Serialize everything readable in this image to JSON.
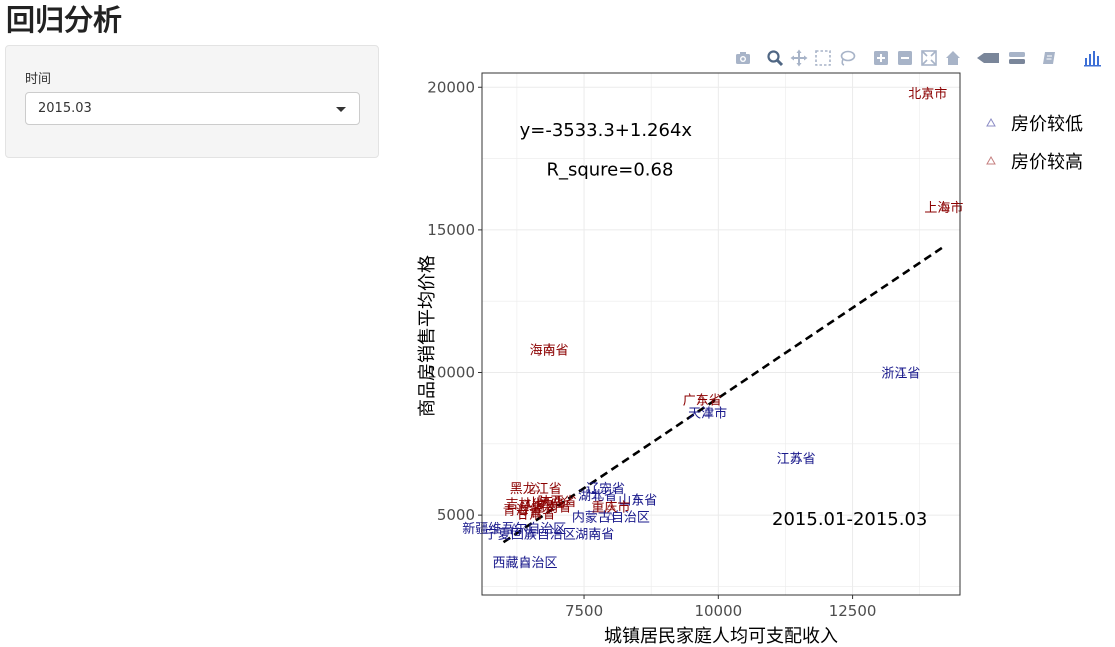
{
  "page": {
    "title": "回归分析"
  },
  "sidebar": {
    "time_label": "时间",
    "time_select_value": "2015.03"
  },
  "modebar": {
    "buttons": [
      {
        "name": "camera-icon"
      },
      {
        "name": "zoom-icon"
      },
      {
        "name": "pan-icon"
      },
      {
        "name": "box-select-icon"
      },
      {
        "name": "lasso-select-icon"
      },
      {
        "name": "zoom-in-icon"
      },
      {
        "name": "zoom-out-icon"
      },
      {
        "name": "autoscale-icon"
      },
      {
        "name": "reset-axes-icon"
      },
      {
        "name": "hover-closest-icon"
      },
      {
        "name": "hover-compare-icon"
      },
      {
        "name": "edit-chart-icon"
      },
      {
        "name": "plotly-logo-icon"
      }
    ]
  },
  "chart_data": {
    "type": "scatter",
    "xlabel": "城镇居民家庭人均可支配收入",
    "ylabel": "商品房销售平均价格",
    "xlim": [
      5600,
      14500
    ],
    "ylim": [
      2200,
      20500
    ],
    "xticks": [
      7500,
      10000,
      12500
    ],
    "yticks": [
      5000,
      10000,
      15000,
      20000
    ],
    "grid": true,
    "equation": "y=-3533.3+1.264x",
    "r_square": "R_squre=0.68",
    "period": "2015.01-2015.03",
    "regression": {
      "intercept": -3533.3,
      "slope": 1.264,
      "x_start": 6000,
      "x_end": 14200
    },
    "legend": {
      "placement": "top-right",
      "entries": [
        {
          "label": "房价较低",
          "color": "#1a1a8c"
        },
        {
          "label": "房价较高",
          "color": "#8b0000"
        }
      ]
    },
    "series": [
      {
        "name": "房价较低",
        "color": "#1a1a8c",
        "points": [
          {
            "label": "浙江省",
            "x": 13400,
            "y": 10000
          },
          {
            "label": "江苏省",
            "x": 11450,
            "y": 7000
          },
          {
            "label": "天津市",
            "x": 9800,
            "y": 8600
          },
          {
            "label": "山东省",
            "x": 8500,
            "y": 5550
          },
          {
            "label": "辽宁省",
            "x": 7900,
            "y": 5950
          },
          {
            "label": "湖北省",
            "x": 7750,
            "y": 5700
          },
          {
            "label": "内蒙古自治区",
            "x": 8000,
            "y": 4950
          },
          {
            "label": "湖南省",
            "x": 7700,
            "y": 4350
          },
          {
            "label": "新疆维吾尔自治区",
            "x": 6200,
            "y": 4550
          },
          {
            "label": "宁夏回族自治区",
            "x": 6500,
            "y": 4350
          },
          {
            "label": "西藏自治区",
            "x": 6400,
            "y": 3350
          }
        ]
      },
      {
        "name": "房价较高",
        "color": "#8b0000",
        "points": [
          {
            "label": "北京市",
            "x": 13900,
            "y": 19800
          },
          {
            "label": "上海市",
            "x": 14200,
            "y": 15800
          },
          {
            "label": "海南省",
            "x": 6850,
            "y": 10800
          },
          {
            "label": "广东省",
            "x": 9700,
            "y": 9050
          },
          {
            "label": "黑龙江省",
            "x": 6600,
            "y": 5950
          },
          {
            "label": "重庆市",
            "x": 8000,
            "y": 5300
          },
          {
            "label": "吉林省",
            "x": 6400,
            "y": 5400
          },
          {
            "label": "青海省",
            "x": 6350,
            "y": 5200
          },
          {
            "label": "河南省",
            "x": 6900,
            "y": 5300
          },
          {
            "label": "陕西省",
            "x": 7000,
            "y": 5500
          },
          {
            "label": "甘肃省",
            "x": 6600,
            "y": 5050
          },
          {
            "label": "山西省",
            "x": 6800,
            "y": 5450
          }
        ]
      }
    ]
  }
}
